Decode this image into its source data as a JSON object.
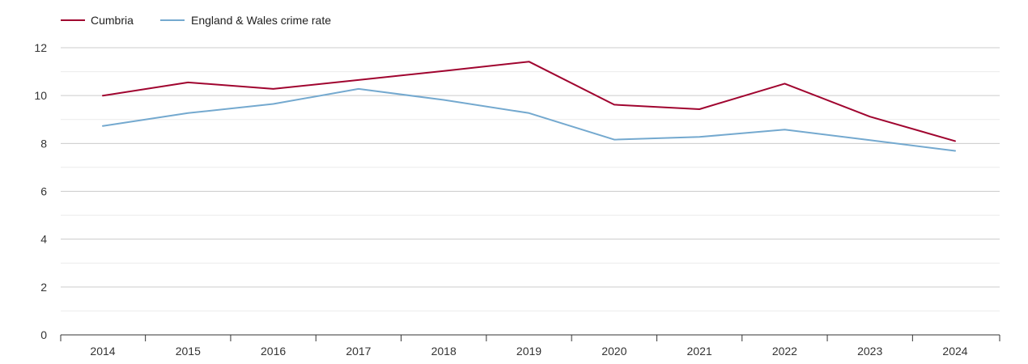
{
  "chart_data": {
    "type": "line",
    "title": "",
    "xlabel": "",
    "ylabel": "",
    "categories": [
      "2014",
      "2015",
      "2016",
      "2017",
      "2018",
      "2019",
      "2020",
      "2021",
      "2022",
      "2023",
      "2024"
    ],
    "series": [
      {
        "name": "Cumbria",
        "color": "#a0042f",
        "values": [
          10.0,
          10.55,
          10.28,
          10.65,
          11.03,
          11.42,
          9.62,
          9.43,
          10.5,
          9.12,
          8.1
        ]
      },
      {
        "name": "England & Wales crime rate",
        "color": "#74a9cf",
        "values": [
          8.73,
          9.27,
          9.65,
          10.28,
          9.82,
          9.27,
          8.16,
          8.27,
          8.58,
          8.14,
          7.69
        ]
      }
    ],
    "ylim": [
      0,
      12
    ],
    "yticks": [
      0,
      2,
      4,
      6,
      8,
      10,
      12
    ],
    "yticks_minor": [
      1,
      3,
      5,
      7,
      9,
      11
    ],
    "grid": true,
    "legend_position": "top-left"
  }
}
